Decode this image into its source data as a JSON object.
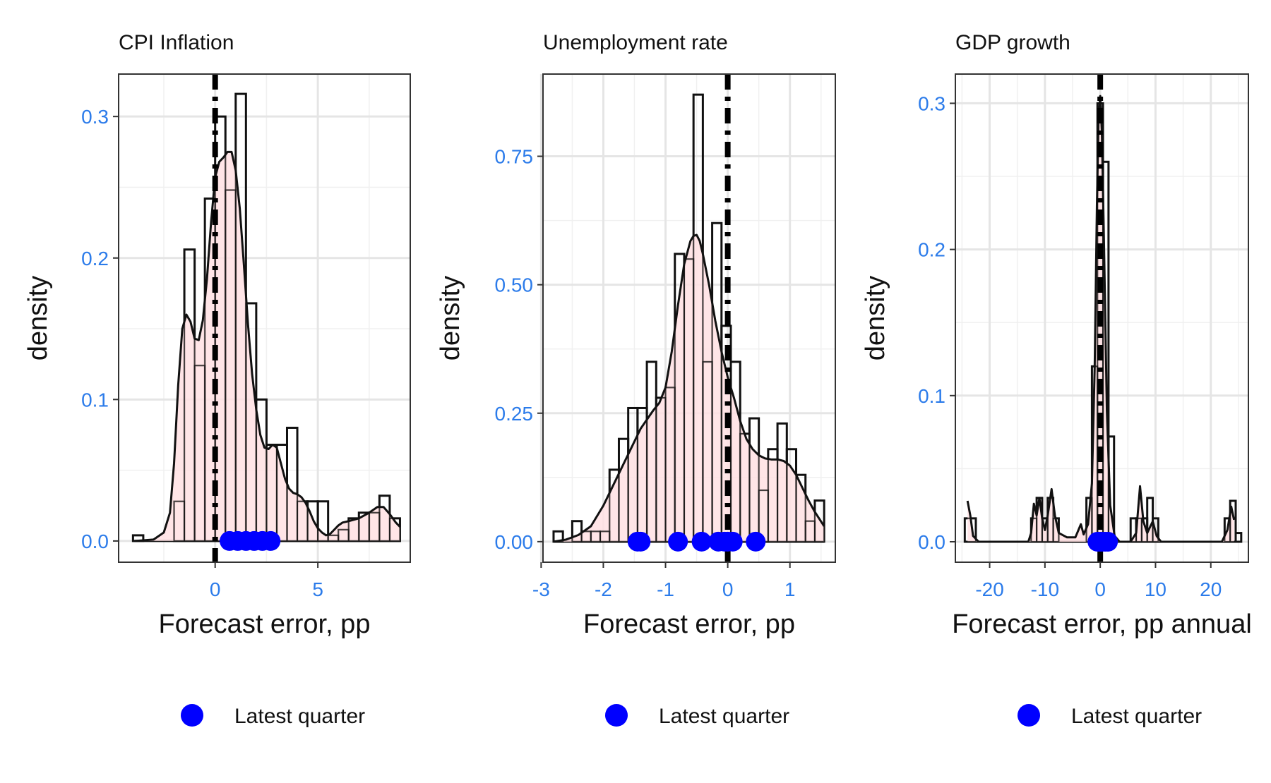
{
  "colors": {
    "tick": "#2b7bea",
    "fill": "#ffe0e3",
    "point": "#0000ff",
    "grid": "#e5e5e5",
    "line": "#111111"
  },
  "legend_label": "Latest quarter",
  "chart_data": [
    {
      "type": "histogram",
      "title": "CPI Inflation",
      "xlabel": "Forecast error, pp",
      "ylabel": "density",
      "xlim": [
        -4.7,
        9.5
      ],
      "ylim": [
        -0.015,
        0.33
      ],
      "xticks": [
        0,
        5
      ],
      "xtick_labels": [
        "0",
        "5"
      ],
      "yticks": [
        0.0,
        0.1,
        0.2,
        0.3
      ],
      "ytick_labels": [
        "0.0",
        "0.1",
        "0.2",
        "0.3"
      ],
      "vline_x": 0,
      "bins": [
        {
          "x0": -4.0,
          "x1": -3.5,
          "y": 0.004
        },
        {
          "x0": -3.5,
          "x1": -3.0,
          "y": 0.0
        },
        {
          "x0": -3.0,
          "x1": -2.5,
          "y": 0.0
        },
        {
          "x0": -2.5,
          "x1": -2.0,
          "y": 0.0
        },
        {
          "x0": -2.0,
          "x1": -1.5,
          "y": 0.028
        },
        {
          "x0": -1.5,
          "x1": -1.0,
          "y": 0.206
        },
        {
          "x0": -1.0,
          "x1": -0.5,
          "y": 0.124
        },
        {
          "x0": -0.5,
          "x1": 0.0,
          "y": 0.242
        },
        {
          "x0": 0.0,
          "x1": 0.5,
          "y": 0.3
        },
        {
          "x0": 0.5,
          "x1": 1.0,
          "y": 0.248
        },
        {
          "x0": 1.0,
          "x1": 1.5,
          "y": 0.316
        },
        {
          "x0": 1.5,
          "x1": 2.0,
          "y": 0.168
        },
        {
          "x0": 2.0,
          "x1": 2.5,
          "y": 0.1
        },
        {
          "x0": 2.5,
          "x1": 3.0,
          "y": 0.068
        },
        {
          "x0": 3.0,
          "x1": 3.5,
          "y": 0.068
        },
        {
          "x0": 3.5,
          "x1": 4.0,
          "y": 0.08
        },
        {
          "x0": 4.0,
          "x1": 4.5,
          "y": 0.028
        },
        {
          "x0": 4.5,
          "x1": 5.0,
          "y": 0.028
        },
        {
          "x0": 5.0,
          "x1": 5.5,
          "y": 0.028
        },
        {
          "x0": 5.5,
          "x1": 6.0,
          "y": 0.004
        },
        {
          "x0": 6.0,
          "x1": 6.5,
          "y": 0.008
        },
        {
          "x0": 6.5,
          "x1": 7.0,
          "y": 0.016
        },
        {
          "x0": 7.0,
          "x1": 7.5,
          "y": 0.02
        },
        {
          "x0": 7.5,
          "x1": 8.0,
          "y": 0.02
        },
        {
          "x0": 8.0,
          "x1": 8.5,
          "y": 0.032
        },
        {
          "x0": 8.5,
          "x1": 9.0,
          "y": 0.016
        }
      ],
      "density": [
        [
          -3.9,
          0.0
        ],
        [
          -3.0,
          0.001
        ],
        [
          -2.5,
          0.006
        ],
        [
          -2.2,
          0.02
        ],
        [
          -2.0,
          0.055
        ],
        [
          -1.8,
          0.11
        ],
        [
          -1.6,
          0.15
        ],
        [
          -1.4,
          0.16
        ],
        [
          -1.2,
          0.155
        ],
        [
          -1.0,
          0.143
        ],
        [
          -0.8,
          0.142
        ],
        [
          -0.6,
          0.156
        ],
        [
          -0.4,
          0.185
        ],
        [
          -0.2,
          0.225
        ],
        [
          0.0,
          0.257
        ],
        [
          0.2,
          0.268
        ],
        [
          0.4,
          0.271
        ],
        [
          0.6,
          0.275
        ],
        [
          0.8,
          0.275
        ],
        [
          1.0,
          0.262
        ],
        [
          1.2,
          0.235
        ],
        [
          1.4,
          0.195
        ],
        [
          1.6,
          0.153
        ],
        [
          1.8,
          0.118
        ],
        [
          2.0,
          0.093
        ],
        [
          2.2,
          0.075
        ],
        [
          2.4,
          0.066
        ],
        [
          2.6,
          0.065
        ],
        [
          2.8,
          0.068
        ],
        [
          3.0,
          0.066
        ],
        [
          3.2,
          0.055
        ],
        [
          3.4,
          0.044
        ],
        [
          3.6,
          0.037
        ],
        [
          3.8,
          0.034
        ],
        [
          4.0,
          0.033
        ],
        [
          4.2,
          0.031
        ],
        [
          4.4,
          0.027
        ],
        [
          4.6,
          0.021
        ],
        [
          4.8,
          0.014
        ],
        [
          5.0,
          0.009
        ],
        [
          5.2,
          0.006
        ],
        [
          5.4,
          0.004
        ],
        [
          5.6,
          0.005
        ],
        [
          5.8,
          0.008
        ],
        [
          6.0,
          0.011
        ],
        [
          6.2,
          0.013
        ],
        [
          6.5,
          0.014
        ],
        [
          7.0,
          0.016
        ],
        [
          7.5,
          0.02
        ],
        [
          7.9,
          0.024
        ],
        [
          8.2,
          0.024
        ],
        [
          8.5,
          0.019
        ],
        [
          8.8,
          0.013
        ],
        [
          9.0,
          0.01
        ]
      ],
      "points_x": [
        0.7,
        1.1,
        1.5,
        1.9,
        2.3,
        2.7
      ]
    },
    {
      "type": "histogram",
      "title": "Unemployment rate",
      "xlabel": "Forecast error, pp",
      "ylabel": "density",
      "xlim": [
        -2.97,
        1.73
      ],
      "ylim": [
        -0.04,
        0.91
      ],
      "xticks": [
        -3,
        -2,
        -1,
        0,
        1
      ],
      "xtick_labels": [
        "-3",
        "-2",
        "-1",
        "0",
        "1"
      ],
      "yticks": [
        0.0,
        0.25,
        0.5,
        0.75
      ],
      "ytick_labels": [
        "0.00",
        "0.25",
        "0.50",
        "0.75"
      ],
      "vline_x": 0,
      "bins": [
        {
          "x0": -2.8,
          "x1": -2.65,
          "y": 0.02
        },
        {
          "x0": -2.65,
          "x1": -2.5,
          "y": 0.0
        },
        {
          "x0": -2.5,
          "x1": -2.35,
          "y": 0.04
        },
        {
          "x0": -2.35,
          "x1": -2.2,
          "y": 0.02
        },
        {
          "x0": -2.2,
          "x1": -2.05,
          "y": 0.02
        },
        {
          "x0": -2.05,
          "x1": -1.9,
          "y": 0.02
        },
        {
          "x0": -1.9,
          "x1": -1.75,
          "y": 0.14
        },
        {
          "x0": -1.75,
          "x1": -1.6,
          "y": 0.2
        },
        {
          "x0": -1.6,
          "x1": -1.45,
          "y": 0.26
        },
        {
          "x0": -1.45,
          "x1": -1.3,
          "y": 0.26
        },
        {
          "x0": -1.3,
          "x1": -1.15,
          "y": 0.35
        },
        {
          "x0": -1.15,
          "x1": -1.0,
          "y": 0.28
        },
        {
          "x0": -1.0,
          "x1": -0.85,
          "y": 0.3
        },
        {
          "x0": -0.85,
          "x1": -0.7,
          "y": 0.56
        },
        {
          "x0": -0.7,
          "x1": -0.55,
          "y": 0.55
        },
        {
          "x0": -0.55,
          "x1": -0.4,
          "y": 0.87
        },
        {
          "x0": -0.4,
          "x1": -0.25,
          "y": 0.35
        },
        {
          "x0": -0.25,
          "x1": -0.1,
          "y": 0.62
        },
        {
          "x0": -0.1,
          "x1": 0.05,
          "y": 0.42
        },
        {
          "x0": 0.05,
          "x1": 0.2,
          "y": 0.35
        },
        {
          "x0": 0.2,
          "x1": 0.35,
          "y": 0.21
        },
        {
          "x0": 0.35,
          "x1": 0.5,
          "y": 0.24
        },
        {
          "x0": 0.5,
          "x1": 0.65,
          "y": 0.1
        },
        {
          "x0": 0.65,
          "x1": 0.8,
          "y": 0.18
        },
        {
          "x0": 0.8,
          "x1": 0.95,
          "y": 0.23
        },
        {
          "x0": 0.95,
          "x1": 1.1,
          "y": 0.18
        },
        {
          "x0": 1.1,
          "x1": 1.25,
          "y": 0.13
        },
        {
          "x0": 1.25,
          "x1": 1.4,
          "y": 0.04
        },
        {
          "x0": 1.4,
          "x1": 1.55,
          "y": 0.08
        }
      ],
      "density": [
        [
          -2.8,
          0.0
        ],
        [
          -2.6,
          0.004
        ],
        [
          -2.4,
          0.013
        ],
        [
          -2.2,
          0.03
        ],
        [
          -2.0,
          0.07
        ],
        [
          -1.8,
          0.12
        ],
        [
          -1.6,
          0.17
        ],
        [
          -1.4,
          0.22
        ],
        [
          -1.2,
          0.255
        ],
        [
          -1.1,
          0.27
        ],
        [
          -1.0,
          0.3
        ],
        [
          -0.9,
          0.37
        ],
        [
          -0.8,
          0.46
        ],
        [
          -0.7,
          0.54
        ],
        [
          -0.6,
          0.585
        ],
        [
          -0.55,
          0.595
        ],
        [
          -0.5,
          0.597
        ],
        [
          -0.45,
          0.585
        ],
        [
          -0.4,
          0.56
        ],
        [
          -0.3,
          0.5
        ],
        [
          -0.2,
          0.43
        ],
        [
          -0.1,
          0.37
        ],
        [
          0.0,
          0.32
        ],
        [
          0.1,
          0.28
        ],
        [
          0.2,
          0.235
        ],
        [
          0.3,
          0.2
        ],
        [
          0.4,
          0.18
        ],
        [
          0.5,
          0.168
        ],
        [
          0.6,
          0.162
        ],
        [
          0.7,
          0.16
        ],
        [
          0.8,
          0.16
        ],
        [
          0.9,
          0.157
        ],
        [
          1.0,
          0.148
        ],
        [
          1.1,
          0.13
        ],
        [
          1.2,
          0.105
        ],
        [
          1.3,
          0.08
        ],
        [
          1.4,
          0.058
        ],
        [
          1.55,
          0.03
        ]
      ],
      "points_x": [
        -1.45,
        -1.4,
        -0.8,
        -0.42,
        -0.15,
        -0.05,
        0.0,
        0.08,
        0.45
      ]
    },
    {
      "type": "histogram",
      "title": "GDP growth",
      "xlabel": "Forecast error, pp annual",
      "ylabel": "density",
      "xlim": [
        -26.2,
        26.8
      ],
      "ylim": [
        -0.014,
        0.32
      ],
      "xticks": [
        -20,
        -10,
        0,
        10,
        20
      ],
      "xtick_labels": [
        "-20",
        "-10",
        "0",
        "10",
        "20"
      ],
      "yticks": [
        0.0,
        0.1,
        0.2,
        0.3
      ],
      "ytick_labels": [
        "0.0",
        "0.1",
        "0.2",
        "0.3"
      ],
      "vline_x": 0,
      "bins": [
        {
          "x0": -24.5,
          "x1": -22.5,
          "y": 0.016
        },
        {
          "x0": -12.5,
          "x1": -11.5,
          "y": 0.016
        },
        {
          "x0": -11.5,
          "x1": -10.5,
          "y": 0.03
        },
        {
          "x0": -10.5,
          "x1": -9.5,
          "y": 0.016
        },
        {
          "x0": -9.5,
          "x1": -8.5,
          "y": 0.03
        },
        {
          "x0": -8.5,
          "x1": -7.5,
          "y": 0.016
        },
        {
          "x0": -2.5,
          "x1": -1.5,
          "y": 0.03
        },
        {
          "x0": -1.5,
          "x1": -0.5,
          "y": 0.12
        },
        {
          "x0": -0.5,
          "x1": 0.5,
          "y": 0.3
        },
        {
          "x0": 0.5,
          "x1": 1.5,
          "y": 0.26
        },
        {
          "x0": 1.5,
          "x1": 2.5,
          "y": 0.072
        },
        {
          "x0": 5.5,
          "x1": 6.5,
          "y": 0.016
        },
        {
          "x0": 6.5,
          "x1": 7.5,
          "y": 0.016
        },
        {
          "x0": 7.5,
          "x1": 8.5,
          "y": 0.016
        },
        {
          "x0": 8.5,
          "x1": 9.5,
          "y": 0.03
        },
        {
          "x0": 9.5,
          "x1": 10.5,
          "y": 0.016
        },
        {
          "x0": 22.5,
          "x1": 23.5,
          "y": 0.016
        },
        {
          "x0": 23.5,
          "x1": 24.5,
          "y": 0.028
        },
        {
          "x0": 24.5,
          "x1": 25.5,
          "y": 0.006
        }
      ],
      "density": [
        [
          -24.0,
          0.028
        ],
        [
          -23.5,
          0.018
        ],
        [
          -23.0,
          0.004
        ],
        [
          -22.0,
          0.0
        ],
        [
          -13.0,
          0.0
        ],
        [
          -12.5,
          0.006
        ],
        [
          -12.0,
          0.026
        ],
        [
          -11.5,
          0.018
        ],
        [
          -11.0,
          0.03
        ],
        [
          -10.5,
          0.016
        ],
        [
          -10.0,
          0.008
        ],
        [
          -9.5,
          0.018
        ],
        [
          -8.8,
          0.036
        ],
        [
          -8.2,
          0.018
        ],
        [
          -7.5,
          0.006
        ],
        [
          -6.0,
          0.003
        ],
        [
          -4.5,
          0.003
        ],
        [
          -3.5,
          0.012
        ],
        [
          -3.0,
          0.005
        ],
        [
          -2.2,
          0.012
        ],
        [
          -1.5,
          0.04
        ],
        [
          -1.0,
          0.12
        ],
        [
          -0.6,
          0.23
        ],
        [
          -0.3,
          0.29
        ],
        [
          0.0,
          0.305
        ],
        [
          0.3,
          0.28
        ],
        [
          0.7,
          0.2
        ],
        [
          1.2,
          0.09
        ],
        [
          1.8,
          0.025
        ],
        [
          2.6,
          0.004
        ],
        [
          3.5,
          0.0
        ],
        [
          5.5,
          0.0
        ],
        [
          6.5,
          0.006
        ],
        [
          7.2,
          0.038
        ],
        [
          7.8,
          0.014
        ],
        [
          8.5,
          0.006
        ],
        [
          9.5,
          0.014
        ],
        [
          10.2,
          0.004
        ],
        [
          11.0,
          0.0
        ],
        [
          22.0,
          0.0
        ],
        [
          23.0,
          0.008
        ],
        [
          23.7,
          0.024
        ],
        [
          24.2,
          0.015
        ]
      ],
      "points_x": [
        -0.5,
        0.0,
        0.4,
        0.9,
        1.4
      ]
    }
  ]
}
